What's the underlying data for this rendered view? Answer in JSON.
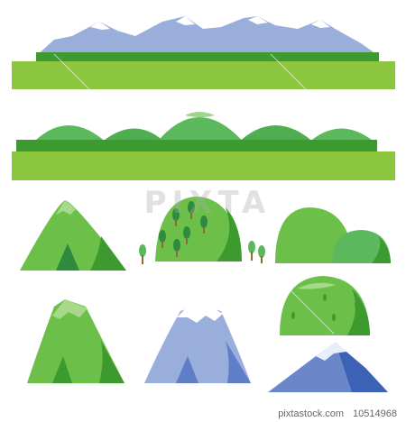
{
  "watermark": {
    "brand": "PIXTA"
  },
  "footer": {
    "site": "pixtastock.com",
    "id": "10514968"
  },
  "colors": {
    "grass_light": "#8cc63f",
    "grass_dark": "#3c9a2f",
    "hill_green": "#5cb85c",
    "hill_shadow": "#2e8b3e",
    "snow": "#ffffff",
    "mountain_blue": "#9aaedc",
    "mountain_blue_dark": "#5f7ec8",
    "rock_blue": "#6b86c9",
    "rock_blue_dark": "#3c62b5"
  },
  "panels": [
    {
      "name": "snowy-mountain-range-with-meadow"
    },
    {
      "name": "rolling-hills-with-meadow"
    },
    {
      "name": "green-volcano-mountain"
    },
    {
      "name": "green-hill-with-trees"
    },
    {
      "name": "double-green-hill"
    },
    {
      "name": "tall-green-mountain"
    },
    {
      "name": "dome-green-hill"
    },
    {
      "name": "blue-snow-capped-mountain"
    },
    {
      "name": "blue-rocky-mountain"
    }
  ]
}
